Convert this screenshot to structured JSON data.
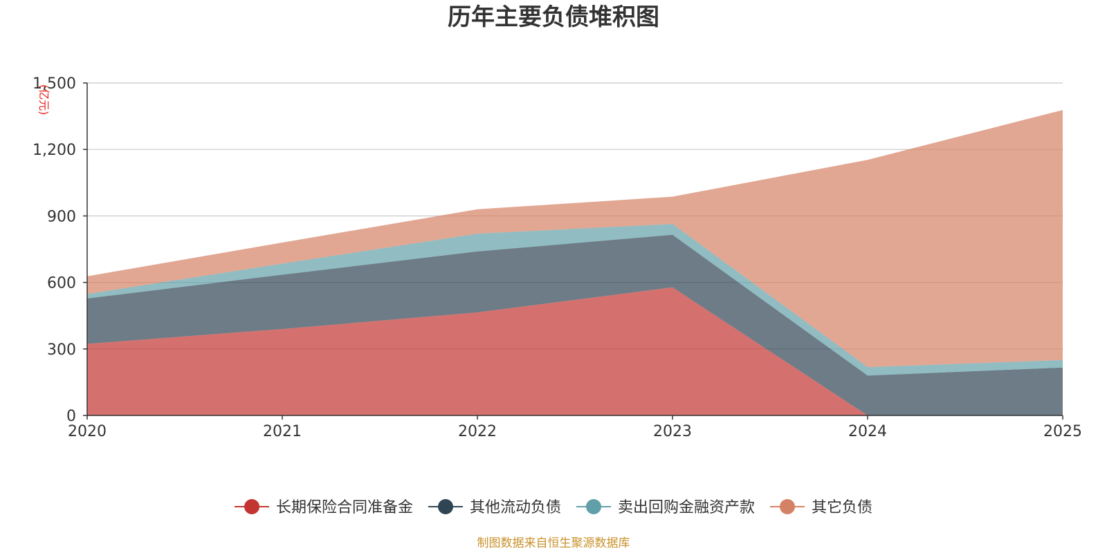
{
  "chart_data": {
    "type": "area",
    "stacked": true,
    "title": "历年主要负债堆积图",
    "unit_label": "(亿元)",
    "x": [
      "2020",
      "2021",
      "2022",
      "2023",
      "2024",
      "2025"
    ],
    "ylim": [
      0,
      1500
    ],
    "yticks": [
      0,
      300,
      600,
      900,
      1200,
      1500
    ],
    "ytick_labels": [
      "0",
      "300",
      "600",
      "900",
      "1,200",
      "1,500"
    ],
    "grid": true,
    "legend_position": "bottom",
    "series": [
      {
        "name": "长期保险合同准备金",
        "color": "#c23531",
        "values": [
          323,
          390,
          465,
          578,
          0,
          0
        ]
      },
      {
        "name": "其他流动负债",
        "color": "#2f4554",
        "values": [
          205,
          245,
          275,
          237,
          180,
          216
        ]
      },
      {
        "name": "卖出回购金融资产款",
        "color": "#61a0a8",
        "values": [
          20,
          50,
          80,
          49,
          38,
          34
        ]
      },
      {
        "name": "其它负债",
        "color": "#d48265",
        "values": [
          80,
          95,
          110,
          123,
          935,
          1128
        ]
      }
    ],
    "source": "制图数据来自恒生聚源数据库"
  }
}
